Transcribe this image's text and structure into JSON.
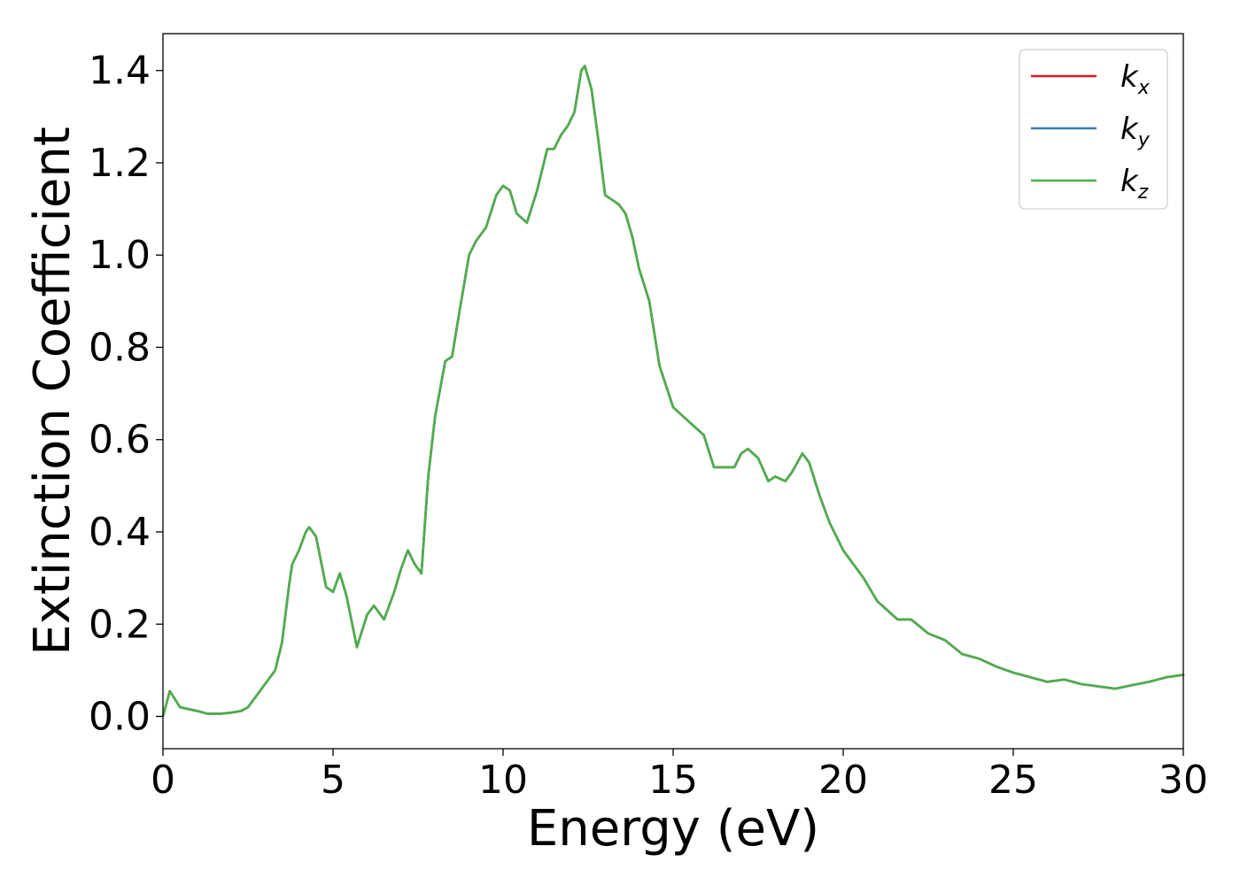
{
  "chart_data": {
    "type": "line",
    "title": "",
    "xlabel": "Energy (eV)",
    "ylabel": "Extinction Coefficient",
    "xlim": [
      0,
      30
    ],
    "ylim": [
      -0.07,
      1.48
    ],
    "xticks": [
      "0",
      "5",
      "10",
      "15",
      "20",
      "25",
      "30"
    ],
    "yticks": [
      "0.0",
      "0.2",
      "0.4",
      "0.6",
      "0.8",
      "1.0",
      "1.2",
      "1.4"
    ],
    "grid": false,
    "legend_position": "top-right",
    "series": [
      {
        "name": "k",
        "subscript": "x",
        "color": "#e41a1c"
      },
      {
        "name": "k",
        "subscript": "y",
        "color": "#377eb8"
      },
      {
        "name": "k",
        "subscript": "z",
        "color": "#4daf4a"
      }
    ],
    "x": [
      0.0,
      0.2,
      0.5,
      0.8,
      1.0,
      1.3,
      1.7,
      2.0,
      2.3,
      2.5,
      2.7,
      3.0,
      3.3,
      3.5,
      3.7,
      3.8,
      4.0,
      4.2,
      4.3,
      4.5,
      4.8,
      5.0,
      5.2,
      5.4,
      5.7,
      6.0,
      6.2,
      6.5,
      6.8,
      7.0,
      7.2,
      7.4,
      7.6,
      7.8,
      8.0,
      8.3,
      8.5,
      8.7,
      9.0,
      9.2,
      9.5,
      9.8,
      10.0,
      10.2,
      10.4,
      10.7,
      11.0,
      11.3,
      11.5,
      11.7,
      11.9,
      12.1,
      12.3,
      12.4,
      12.6,
      12.8,
      13.0,
      13.2,
      13.4,
      13.6,
      13.8,
      14.0,
      14.3,
      14.6,
      15.0,
      15.3,
      15.6,
      15.9,
      16.2,
      16.5,
      16.8,
      17.0,
      17.2,
      17.5,
      17.8,
      18.0,
      18.3,
      18.5,
      18.8,
      19.0,
      19.3,
      19.6,
      20.0,
      20.3,
      20.6,
      21.0,
      21.3,
      21.6,
      22.0,
      22.5,
      23.0,
      23.5,
      24.0,
      24.5,
      25.0,
      25.5,
      26.0,
      26.5,
      27.0,
      27.5,
      28.0,
      28.5,
      29.0,
      29.5,
      30.0
    ],
    "values": [
      0.0,
      0.055,
      0.02,
      0.015,
      0.012,
      0.006,
      0.006,
      0.008,
      0.012,
      0.02,
      0.04,
      0.07,
      0.1,
      0.16,
      0.28,
      0.33,
      0.36,
      0.4,
      0.41,
      0.39,
      0.28,
      0.27,
      0.31,
      0.26,
      0.15,
      0.22,
      0.24,
      0.21,
      0.27,
      0.32,
      0.36,
      0.33,
      0.31,
      0.52,
      0.65,
      0.77,
      0.78,
      0.87,
      1.0,
      1.03,
      1.06,
      1.13,
      1.15,
      1.14,
      1.09,
      1.07,
      1.14,
      1.23,
      1.23,
      1.26,
      1.28,
      1.31,
      1.4,
      1.41,
      1.36,
      1.25,
      1.13,
      1.12,
      1.11,
      1.09,
      1.04,
      0.97,
      0.9,
      0.76,
      0.67,
      0.65,
      0.63,
      0.61,
      0.54,
      0.54,
      0.54,
      0.57,
      0.58,
      0.56,
      0.51,
      0.52,
      0.51,
      0.53,
      0.57,
      0.55,
      0.48,
      0.42,
      0.36,
      0.33,
      0.3,
      0.25,
      0.23,
      0.21,
      0.21,
      0.18,
      0.165,
      0.135,
      0.125,
      0.108,
      0.095,
      0.085,
      0.075,
      0.08,
      0.07,
      0.065,
      0.06,
      0.068,
      0.075,
      0.085,
      0.09
    ]
  }
}
